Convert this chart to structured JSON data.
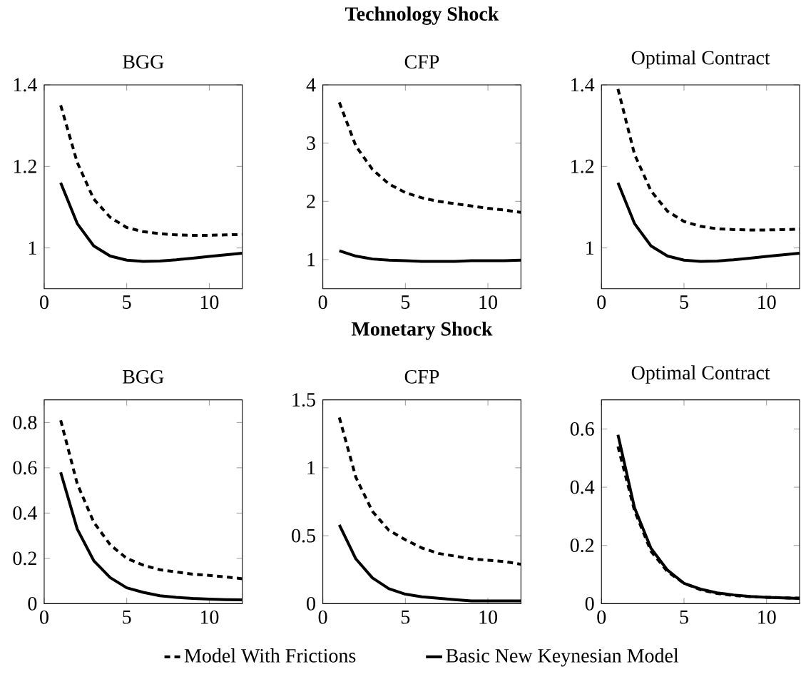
{
  "chart_data": [
    {
      "type": "line",
      "title": "BGG",
      "x": [
        1,
        2,
        3,
        4,
        5,
        6,
        7,
        8,
        9,
        10,
        11,
        12
      ],
      "xlim": [
        0,
        12
      ],
      "xticks": [
        0,
        5,
        10
      ],
      "ylim": [
        0.9,
        1.4
      ],
      "yticks": [
        1,
        1.2,
        1.4
      ],
      "series": [
        {
          "color": "#000000",
          "line_style": "dashed",
          "values": [
            1.35,
            1.21,
            1.12,
            1.075,
            1.05,
            1.04,
            1.035,
            1.032,
            1.031,
            1.031,
            1.032,
            1.033
          ]
        },
        {
          "color": "#000000",
          "line_style": "solid",
          "values": [
            1.16,
            1.06,
            1.005,
            0.98,
            0.97,
            0.967,
            0.968,
            0.971,
            0.975,
            0.979,
            0.983,
            0.987
          ]
        }
      ]
    },
    {
      "type": "line",
      "title": "CFP",
      "annotations": [
        "Technology Shock"
      ],
      "x": [
        1,
        2,
        3,
        4,
        5,
        6,
        7,
        8,
        9,
        10,
        11,
        12
      ],
      "xlim": [
        0,
        12
      ],
      "xticks": [
        0,
        5,
        10
      ],
      "ylim": [
        0.5,
        4
      ],
      "yticks": [
        1,
        2,
        3,
        4
      ],
      "series": [
        {
          "color": "#000000",
          "line_style": "dashed",
          "values": [
            3.7,
            2.95,
            2.55,
            2.3,
            2.15,
            2.06,
            2.0,
            1.96,
            1.92,
            1.88,
            1.85,
            1.81
          ]
        },
        {
          "color": "#000000",
          "line_style": "solid",
          "values": [
            1.15,
            1.06,
            1.01,
            0.99,
            0.98,
            0.97,
            0.97,
            0.97,
            0.98,
            0.98,
            0.98,
            0.99
          ]
        }
      ]
    },
    {
      "type": "line",
      "title": "Optimal Contract",
      "x": [
        1,
        2,
        3,
        4,
        5,
        6,
        7,
        8,
        9,
        10,
        11,
        12
      ],
      "xlim": [
        0,
        12
      ],
      "xticks": [
        0,
        5,
        10
      ],
      "ylim": [
        0.9,
        1.4
      ],
      "yticks": [
        1,
        1.2,
        1.4
      ],
      "series": [
        {
          "color": "#000000",
          "line_style": "dashed",
          "values": [
            1.39,
            1.23,
            1.14,
            1.09,
            1.065,
            1.053,
            1.047,
            1.045,
            1.044,
            1.044,
            1.045,
            1.046
          ]
        },
        {
          "color": "#000000",
          "line_style": "solid",
          "values": [
            1.16,
            1.06,
            1.005,
            0.98,
            0.97,
            0.967,
            0.968,
            0.971,
            0.975,
            0.979,
            0.983,
            0.987
          ]
        }
      ]
    },
    {
      "type": "line",
      "title": "BGG",
      "x": [
        1,
        2,
        3,
        4,
        5,
        6,
        7,
        8,
        9,
        10,
        11,
        12
      ],
      "xlim": [
        0,
        12
      ],
      "xticks": [
        0,
        5,
        10
      ],
      "ylim": [
        0,
        0.9
      ],
      "yticks": [
        0,
        0.2,
        0.4,
        0.6,
        0.8
      ],
      "series": [
        {
          "color": "#000000",
          "line_style": "dashed",
          "values": [
            0.81,
            0.53,
            0.36,
            0.26,
            0.2,
            0.17,
            0.15,
            0.14,
            0.13,
            0.125,
            0.118,
            0.11
          ]
        },
        {
          "color": "#000000",
          "line_style": "solid",
          "values": [
            0.58,
            0.33,
            0.19,
            0.115,
            0.07,
            0.05,
            0.035,
            0.028,
            0.023,
            0.02,
            0.018,
            0.017
          ]
        }
      ]
    },
    {
      "type": "line",
      "title": "CFP",
      "annotations": [
        "Monetary Shock"
      ],
      "legend": "bottom",
      "x": [
        1,
        2,
        3,
        4,
        5,
        6,
        7,
        8,
        9,
        10,
        11,
        12
      ],
      "xlim": [
        0,
        12
      ],
      "xticks": [
        0,
        5,
        10
      ],
      "ylim": [
        0,
        1.5
      ],
      "yticks": [
        0,
        0.5,
        1,
        1.5
      ],
      "series": [
        {
          "name": "Model With Frictions",
          "color": "#000000",
          "line_style": "dashed",
          "values": [
            1.37,
            0.93,
            0.68,
            0.54,
            0.47,
            0.41,
            0.37,
            0.35,
            0.33,
            0.32,
            0.31,
            0.29
          ]
        },
        {
          "name": "Basic New Keynesian Model",
          "color": "#000000",
          "line_style": "solid",
          "values": [
            0.58,
            0.33,
            0.19,
            0.11,
            0.07,
            0.05,
            0.04,
            0.03,
            0.02,
            0.02,
            0.02,
            0.02
          ]
        }
      ]
    },
    {
      "type": "line",
      "title": "Optimal Contract",
      "x": [
        1,
        2,
        3,
        4,
        5,
        6,
        7,
        8,
        9,
        10,
        11,
        12
      ],
      "xlim": [
        0,
        12
      ],
      "xticks": [
        0,
        5,
        10
      ],
      "ylim": [
        0,
        0.7
      ],
      "yticks": [
        0,
        0.2,
        0.4,
        0.6
      ],
      "series": [
        {
          "color": "#000000",
          "line_style": "dashed",
          "values": [
            0.54,
            0.32,
            0.18,
            0.11,
            0.07,
            0.048,
            0.035,
            0.028,
            0.024,
            0.022,
            0.02,
            0.019
          ]
        },
        {
          "color": "#000000",
          "line_style": "solid",
          "values": [
            0.58,
            0.33,
            0.19,
            0.115,
            0.07,
            0.05,
            0.037,
            0.03,
            0.025,
            0.022,
            0.02,
            0.018
          ]
        }
      ]
    }
  ]
}
